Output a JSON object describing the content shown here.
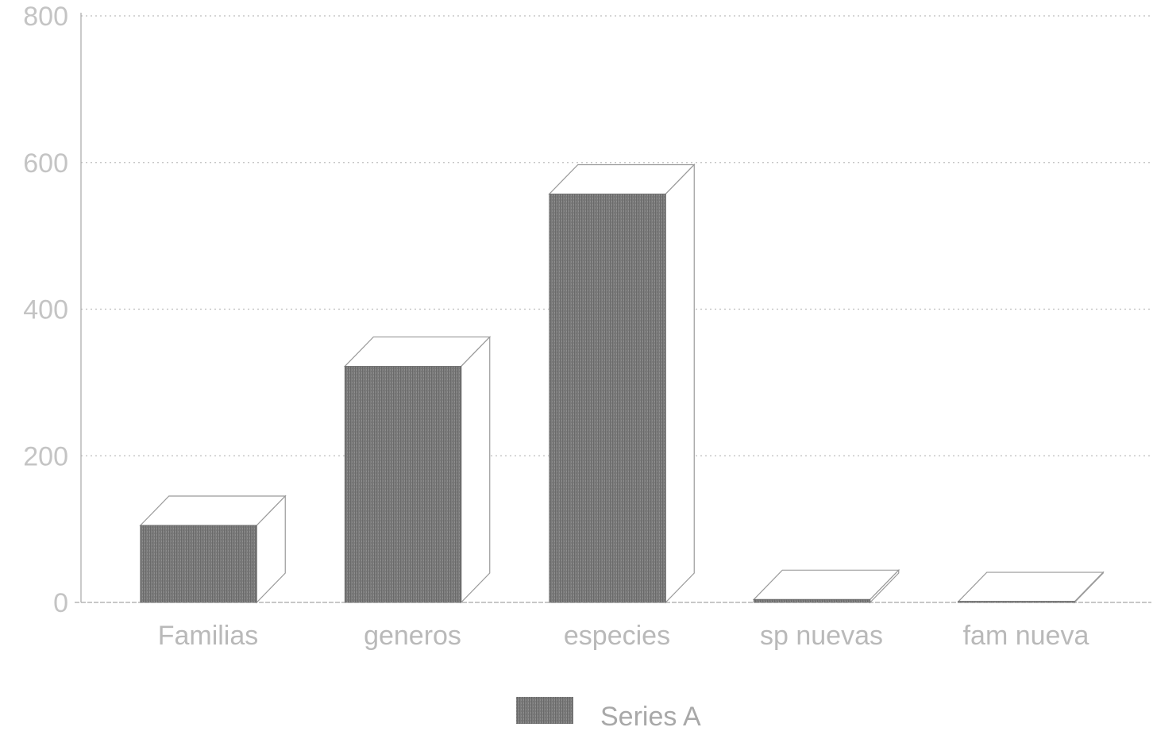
{
  "chart_data": {
    "type": "bar",
    "title": "",
    "xlabel": "",
    "ylabel": "",
    "categories": [
      "Familias",
      "generos",
      "especies",
      "sp nuevas",
      "fam nueva"
    ],
    "series": [
      {
        "name": "Series A",
        "values": [
          105,
          322,
          557,
          4,
          1
        ],
        "color": "#7a7a7a"
      }
    ],
    "ylim": [
      0,
      800
    ],
    "yticks": [
      0,
      200,
      400,
      600,
      800
    ],
    "grid": true,
    "legend_position": "bottom-center",
    "style": "3d-bar"
  }
}
